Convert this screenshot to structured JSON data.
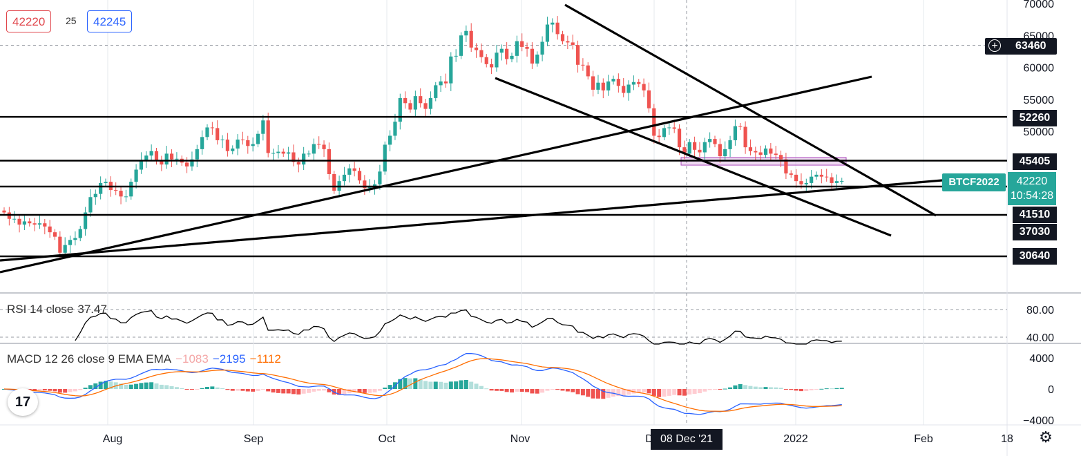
{
  "header": {
    "bid": "42220",
    "spread": "25",
    "ask": "42245"
  },
  "price_axis": {
    "ticks": [
      "70000",
      "65000",
      "60000",
      "55000",
      "50000"
    ],
    "levels": [
      "52260",
      "45405",
      "41510",
      "37030",
      "30640"
    ],
    "crosshair_value": "63460",
    "current_price": "42220",
    "countdown": "10:54:28",
    "symbol": "BTCF2022"
  },
  "time_axis": {
    "labels": [
      "Aug",
      "Sep",
      "Oct",
      "Nov",
      "D",
      "2022",
      "Feb",
      "18"
    ],
    "crosshair_date": "08 Dec '21"
  },
  "rsi": {
    "label": "RSI 14 close",
    "value": "37.47",
    "ticks": [
      "80.00",
      "40.00"
    ]
  },
  "macd": {
    "label": "MACD 12 26 close 9 EMA EMA",
    "hist": "−1083",
    "macd": "−2195",
    "signal": "−1112",
    "ticks": [
      "4000",
      "0",
      "−4000"
    ]
  },
  "colors": {
    "up": "#26a69a",
    "down": "#ef5350",
    "hist_up": "#26a69a",
    "hist_up_light": "#b2dfdb",
    "hist_down": "#ef5350",
    "hist_down_light": "#ffcdd2",
    "macd_line": "#2962ff",
    "signal_line": "#ff6d00",
    "zone": "#ce93d8"
  },
  "chart_data": {
    "type": "candlestick",
    "symbol": "BTCF2022",
    "ylim": [
      27000,
      71000
    ],
    "horizontal_levels": [
      52260,
      45405,
      41510,
      37030,
      30640
    ],
    "closes": [
      37300,
      36300,
      36300,
      35400,
      35900,
      35600,
      35400,
      35600,
      35100,
      34200,
      33500,
      31000,
      32200,
      33000,
      33300,
      34700,
      37300,
      39700,
      40200,
      41900,
      42100,
      40800,
      40700,
      39800,
      39800,
      42100,
      44000,
      45500,
      46200,
      46900,
      45300,
      44800,
      46500,
      45600,
      45700,
      45100,
      44500,
      45600,
      47200,
      49100,
      50600,
      50500,
      48600,
      48700,
      46900,
      47300,
      48700,
      48600,
      47700,
      48000,
      49600,
      51700,
      46600,
      46600,
      46800,
      46500,
      46700,
      45200,
      44800,
      46500,
      46500,
      48000,
      47900,
      47200,
      43300,
      40700,
      42200,
      43200,
      44200,
      43800,
      42300,
      41100,
      41300,
      41700,
      43700,
      47900,
      49300,
      51500,
      55200,
      54400,
      53400,
      55500,
      54400,
      53500,
      55200,
      57200,
      57800,
      57500,
      61700,
      61800,
      65000,
      65700,
      63100,
      62700,
      61600,
      60500,
      60000,
      62300,
      62900,
      61300,
      61800,
      64100,
      63200,
      62900,
      60600,
      62000,
      64000,
      66700,
      67000,
      65200,
      64100,
      63900,
      63500,
      60400,
      60300,
      58600,
      56500,
      57600,
      56400,
      57800,
      58200,
      57100,
      56000,
      57300,
      57700,
      57400,
      56400,
      53600,
      49300,
      49100,
      50500,
      50600,
      50400,
      47500,
      46500,
      48300,
      47100,
      46700,
      48300,
      48800,
      48000,
      46100,
      47200,
      48600,
      50800,
      50700,
      47500,
      46900,
      46700,
      46300,
      47300,
      46500,
      46300,
      45600,
      43400,
      43200,
      42200,
      41700,
      41900,
      42900,
      43200,
      42900,
      42800,
      41900,
      42200,
      42220
    ],
    "rsi_range": [
      20,
      100
    ],
    "macd_range": [
      -4300,
      4300
    ]
  }
}
